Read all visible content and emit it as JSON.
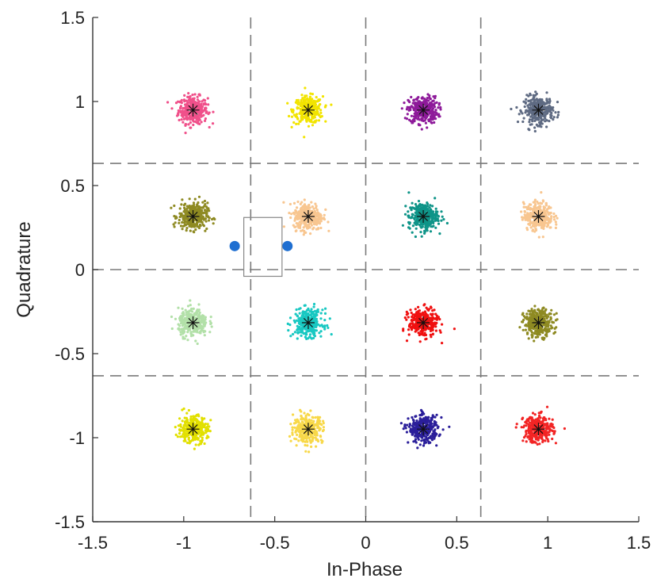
{
  "chart_data": {
    "type": "scatter",
    "title": "",
    "xlabel": "In-Phase",
    "ylabel": "Quadrature",
    "xlim": [
      -1.5,
      1.5
    ],
    "ylim": [
      -1.5,
      1.5
    ],
    "xticks": [
      "-1.5",
      "-1",
      "-0.5",
      "0",
      "0.5",
      "1",
      "1.5"
    ],
    "xtick_values": [
      -1.5,
      -1,
      -0.5,
      0,
      0.5,
      1,
      1.5
    ],
    "yticks": [
      "-1.5",
      "-1",
      "-0.5",
      "0",
      "0.5",
      "1",
      "1.5"
    ],
    "ytick_values": [
      -1.5,
      -1,
      -0.5,
      0,
      0.5,
      1,
      1.5
    ],
    "grid": false,
    "decision_boundaries": {
      "x": [
        -0.632,
        0,
        0.632
      ],
      "y": [
        -0.632,
        0,
        0.632
      ],
      "style": "dashed",
      "color": "#7a7a7a"
    },
    "clusters": [
      {
        "center": [
          -0.949,
          0.949
        ],
        "color": "#f0508a"
      },
      {
        "center": [
          -0.316,
          0.949
        ],
        "color": "#f2e400"
      },
      {
        "center": [
          0.316,
          0.949
        ],
        "color": "#8e1a9a"
      },
      {
        "center": [
          0.949,
          0.949
        ],
        "color": "#5e6a82"
      },
      {
        "center": [
          -0.949,
          0.316
        ],
        "color": "#8e8a22"
      },
      {
        "center": [
          -0.316,
          0.316
        ],
        "color": "#f8c690"
      },
      {
        "center": [
          0.316,
          0.316
        ],
        "color": "#0e9488"
      },
      {
        "center": [
          0.949,
          0.316
        ],
        "color": "#f8c690"
      },
      {
        "center": [
          -0.949,
          -0.316
        ],
        "color": "#b2e0a8"
      },
      {
        "center": [
          -0.316,
          -0.316
        ],
        "color": "#18c8c2"
      },
      {
        "center": [
          0.316,
          -0.316
        ],
        "color": "#f01010"
      },
      {
        "center": [
          0.949,
          -0.316
        ],
        "color": "#8e8a22"
      },
      {
        "center": [
          -0.949,
          -0.949
        ],
        "color": "#e2e000"
      },
      {
        "center": [
          -0.316,
          -0.949
        ],
        "color": "#f8d848"
      },
      {
        "center": [
          0.316,
          -0.949
        ],
        "color": "#2a1e9a"
      },
      {
        "center": [
          0.949,
          -0.949
        ],
        "color": "#f22424"
      }
    ],
    "cluster_spread": 0.04,
    "points_per_cluster": 320,
    "center_marker": "asterisk",
    "center_marker_color": "#111111",
    "highlight_box": {
      "x_range": [
        -0.72,
        -0.43
      ],
      "y_range": [
        -0.04,
        0.31
      ],
      "color": "#888888"
    },
    "highlight_points": {
      "points": [
        [
          -0.72,
          0.14
        ],
        [
          -0.43,
          0.14
        ]
      ],
      "color": "#1f6fd1"
    }
  }
}
